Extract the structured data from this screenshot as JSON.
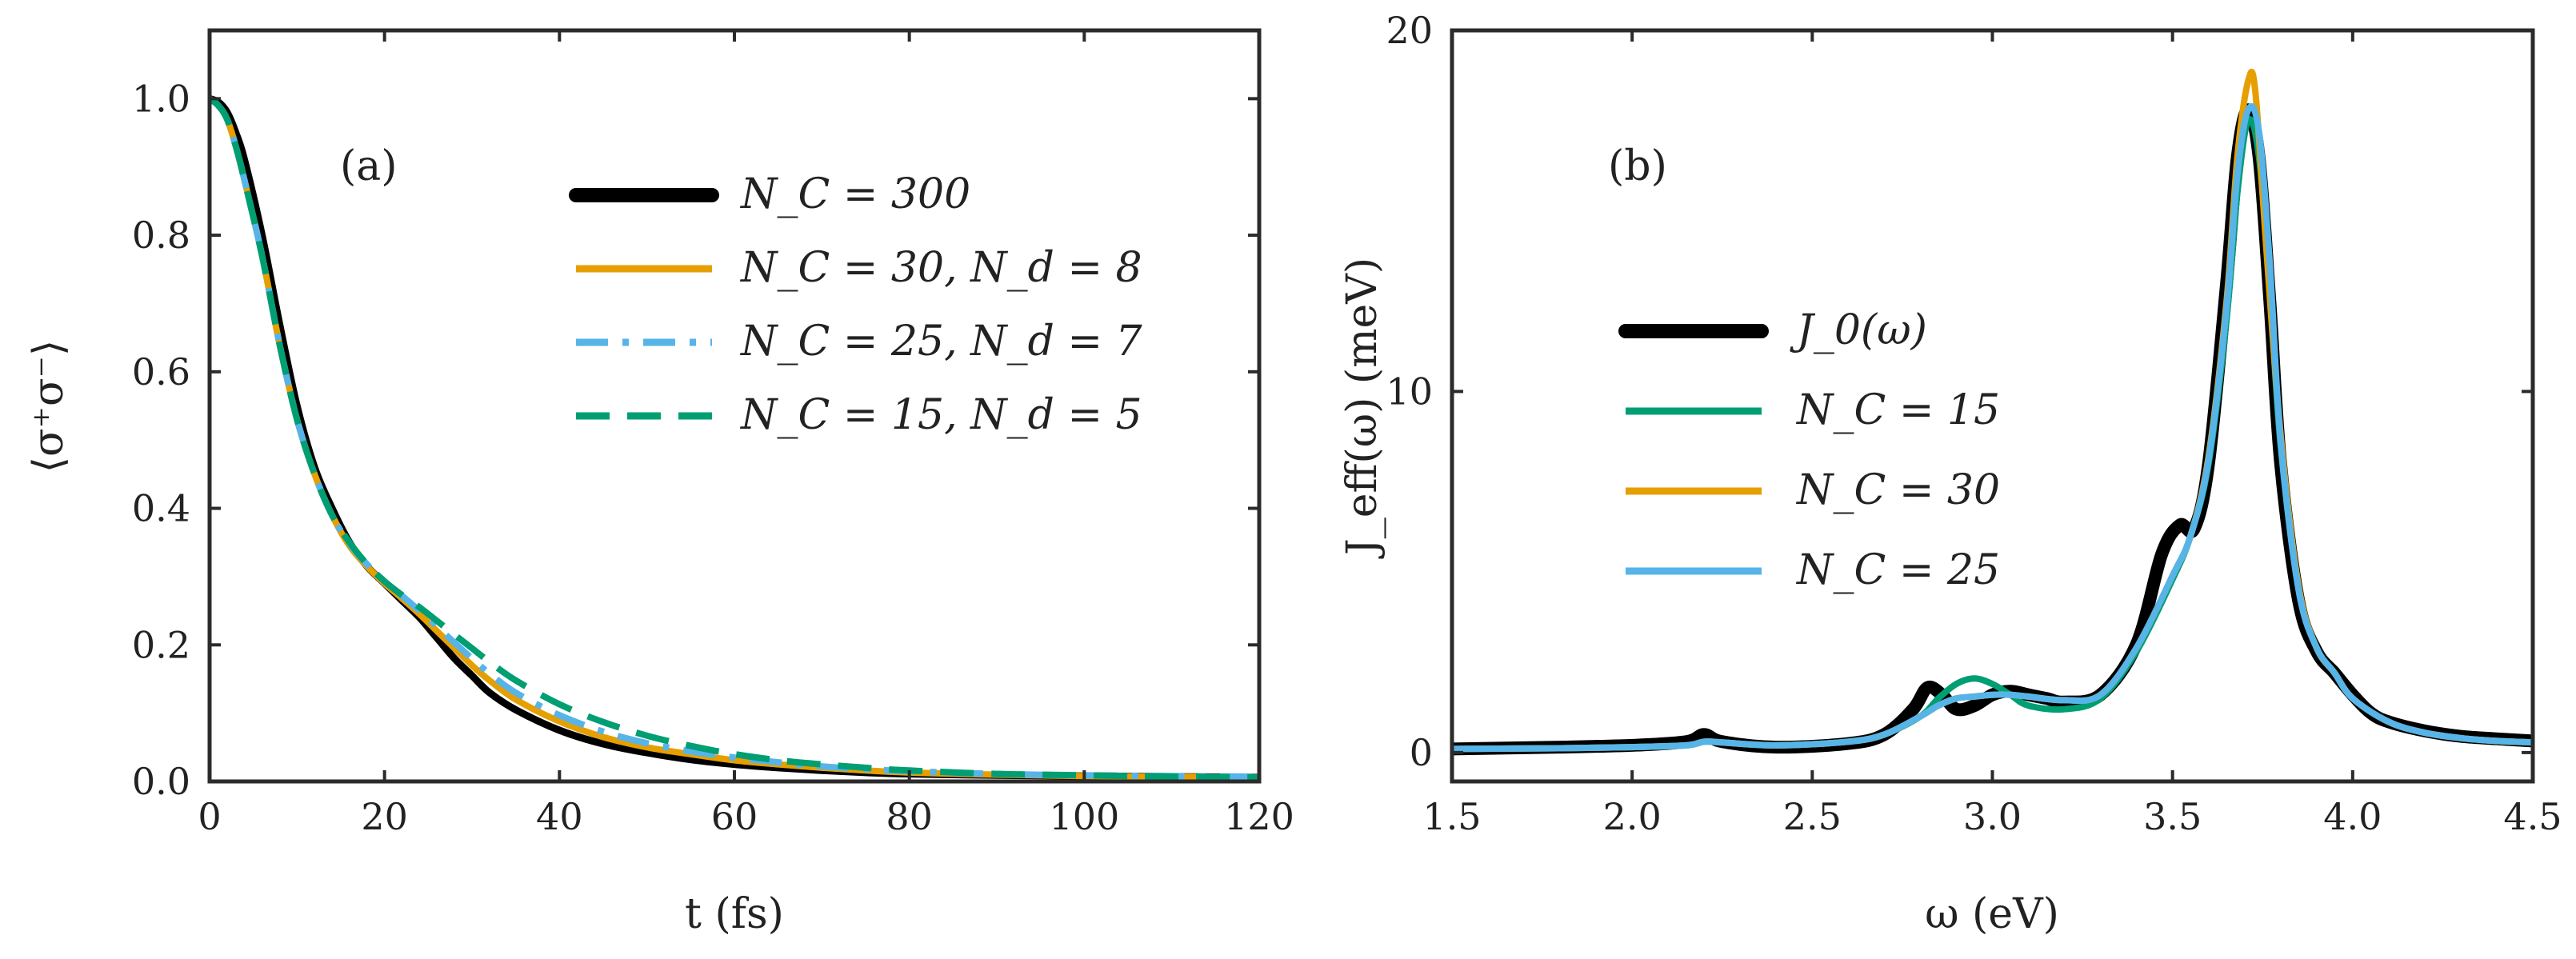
{
  "colors": {
    "black": "#000000",
    "orange": "#E69F00",
    "skyblue": "#56B4E9",
    "green": "#009E73",
    "frame": "#2b2b2b"
  },
  "chart_data": [
    {
      "id": "a",
      "type": "line",
      "panel_label": "(a)",
      "xlabel": "t (fs)",
      "ylabel": "⟨σ⁺σ⁻⟩",
      "xlim": [
        0,
        120
      ],
      "ylim": [
        0,
        1.1
      ],
      "xticks": [
        0,
        20,
        40,
        60,
        80,
        100,
        120
      ],
      "xtick_labels": [
        "0",
        "20",
        "40",
        "60",
        "80",
        "100",
        "120"
      ],
      "yticks": [
        0,
        0.2,
        0.4,
        0.6,
        0.8,
        1.0
      ],
      "ytick_labels": [
        "0.0",
        "0.2",
        "0.4",
        "0.6",
        "0.8",
        "1.0"
      ],
      "legend_position": "upper-right",
      "series": [
        {
          "name": "N_C = 300",
          "legend": "N_C = 300",
          "color": "#000000",
          "style": "solid",
          "x": [
            0,
            1,
            2,
            3,
            4,
            6,
            8,
            10,
            12,
            14,
            16,
            18,
            20,
            22,
            24,
            26,
            28,
            30,
            32,
            35,
            40,
            45,
            50,
            55,
            60,
            65,
            70,
            75,
            80,
            90,
            100,
            110,
            120
          ],
          "y": [
            1.0,
            0.995,
            0.98,
            0.95,
            0.91,
            0.8,
            0.67,
            0.55,
            0.46,
            0.4,
            0.35,
            0.315,
            0.29,
            0.265,
            0.24,
            0.21,
            0.18,
            0.155,
            0.13,
            0.105,
            0.075,
            0.055,
            0.042,
            0.032,
            0.025,
            0.02,
            0.016,
            0.013,
            0.011,
            0.009,
            0.008,
            0.007,
            0.006
          ]
        },
        {
          "name": "N_C = 30, N_d = 8",
          "legend": "N_C = 30, N_d = 8",
          "color": "#E69F00",
          "style": "solid",
          "x": [
            0,
            1,
            2,
            3,
            4,
            6,
            8,
            10,
            12,
            14,
            16,
            18,
            20,
            22,
            24,
            26,
            28,
            30,
            32,
            35,
            40,
            45,
            50,
            55,
            60,
            65,
            70,
            75,
            80,
            90,
            100,
            110,
            120
          ],
          "y": [
            1.0,
            0.99,
            0.97,
            0.93,
            0.88,
            0.77,
            0.64,
            0.53,
            0.45,
            0.39,
            0.345,
            0.315,
            0.29,
            0.268,
            0.245,
            0.22,
            0.195,
            0.17,
            0.148,
            0.12,
            0.088,
            0.065,
            0.05,
            0.04,
            0.031,
            0.025,
            0.02,
            0.016,
            0.013,
            0.01,
            0.008,
            0.007,
            0.006
          ]
        },
        {
          "name": "N_C = 25, N_d = 7",
          "legend": "N_C = 25, N_d = 7",
          "color": "#56B4E9",
          "style": "dashdot",
          "x": [
            0,
            1,
            2,
            3,
            4,
            6,
            8,
            10,
            12,
            14,
            16,
            18,
            20,
            22,
            24,
            26,
            28,
            30,
            32,
            35,
            40,
            45,
            50,
            55,
            60,
            65,
            70,
            75,
            80,
            90,
            100,
            110,
            120
          ],
          "y": [
            1.0,
            0.99,
            0.97,
            0.93,
            0.88,
            0.77,
            0.64,
            0.53,
            0.45,
            0.39,
            0.348,
            0.318,
            0.293,
            0.272,
            0.25,
            0.227,
            0.203,
            0.18,
            0.158,
            0.13,
            0.097,
            0.073,
            0.056,
            0.044,
            0.035,
            0.028,
            0.022,
            0.018,
            0.015,
            0.011,
            0.009,
            0.008,
            0.007
          ]
        },
        {
          "name": "N_C = 15, N_d = 5",
          "legend": "N_C = 15, N_d = 5",
          "color": "#009E73",
          "style": "dashed",
          "x": [
            0,
            1,
            2,
            3,
            4,
            6,
            8,
            10,
            12,
            14,
            16,
            18,
            20,
            22,
            24,
            26,
            28,
            30,
            32,
            35,
            40,
            45,
            50,
            55,
            60,
            65,
            70,
            75,
            80,
            90,
            100,
            110,
            120
          ],
          "y": [
            1.0,
            0.99,
            0.97,
            0.93,
            0.88,
            0.77,
            0.64,
            0.53,
            0.45,
            0.39,
            0.35,
            0.318,
            0.293,
            0.273,
            0.255,
            0.235,
            0.215,
            0.195,
            0.175,
            0.148,
            0.113,
            0.087,
            0.067,
            0.052,
            0.04,
            0.031,
            0.025,
            0.02,
            0.016,
            0.011,
            0.009,
            0.007,
            0.006
          ]
        }
      ]
    },
    {
      "id": "b",
      "type": "line",
      "panel_label": "(b)",
      "xlabel": "ω (eV)",
      "ylabel": "J_eff(ω) (meV)",
      "xlim": [
        1.5,
        4.5
      ],
      "ylim": [
        -0.8,
        20
      ],
      "xticks": [
        1.5,
        2.0,
        2.5,
        3.0,
        3.5,
        4.0,
        4.5
      ],
      "xtick_labels": [
        "1.5",
        "2.0",
        "2.5",
        "3.0",
        "3.5",
        "4.0",
        "4.5"
      ],
      "yticks": [
        0,
        10,
        20
      ],
      "ytick_labels": [
        "0",
        "10",
        "20"
      ],
      "legend_position": "center-left",
      "series": [
        {
          "name": "J_0(ω)",
          "legend": "J_0(ω)",
          "color": "#000000",
          "style": "solid",
          "x": [
            1.5,
            1.8,
            2.0,
            2.15,
            2.2,
            2.25,
            2.4,
            2.6,
            2.7,
            2.78,
            2.82,
            2.86,
            2.9,
            2.95,
            3.0,
            3.05,
            3.1,
            3.15,
            3.2,
            3.3,
            3.4,
            3.47,
            3.52,
            3.56,
            3.6,
            3.65,
            3.68,
            3.71,
            3.74,
            3.77,
            3.8,
            3.85,
            3.9,
            3.95,
            4.0,
            4.05,
            4.1,
            4.2,
            4.3,
            4.4,
            4.5
          ],
          "y": [
            0.1,
            0.15,
            0.2,
            0.3,
            0.5,
            0.3,
            0.15,
            0.25,
            0.5,
            1.2,
            1.8,
            1.6,
            1.2,
            1.3,
            1.6,
            1.7,
            1.6,
            1.5,
            1.4,
            1.6,
            3.0,
            5.5,
            6.3,
            6.2,
            8.0,
            13.0,
            16.5,
            17.8,
            16.5,
            12.5,
            8.0,
            4.2,
            2.8,
            2.2,
            1.6,
            1.1,
            0.85,
            0.6,
            0.45,
            0.38,
            0.32
          ]
        },
        {
          "name": "N_C = 15",
          "legend": "N_C = 15",
          "color": "#009E73",
          "style": "solid",
          "x": [
            1.5,
            1.8,
            2.0,
            2.15,
            2.2,
            2.25,
            2.4,
            2.6,
            2.7,
            2.8,
            2.85,
            2.9,
            2.95,
            3.0,
            3.05,
            3.1,
            3.2,
            3.3,
            3.4,
            3.5,
            3.55,
            3.6,
            3.65,
            3.68,
            3.71,
            3.74,
            3.77,
            3.8,
            3.85,
            3.9,
            3.95,
            4.0,
            4.1,
            4.2,
            4.3,
            4.4,
            4.5
          ],
          "y": [
            0.1,
            0.12,
            0.15,
            0.2,
            0.3,
            0.28,
            0.2,
            0.3,
            0.5,
            1.0,
            1.5,
            1.9,
            2.05,
            1.9,
            1.6,
            1.3,
            1.2,
            1.5,
            2.8,
            4.8,
            6.0,
            8.0,
            12.0,
            15.5,
            17.5,
            16.5,
            12.8,
            8.5,
            4.5,
            2.9,
            2.2,
            1.5,
            0.85,
            0.55,
            0.4,
            0.32,
            0.28
          ]
        },
        {
          "name": "N_C = 30",
          "legend": "N_C = 30",
          "color": "#E69F00",
          "style": "solid",
          "x": [
            1.5,
            1.8,
            2.0,
            2.15,
            2.2,
            2.25,
            2.4,
            2.6,
            2.7,
            2.8,
            2.85,
            2.9,
            2.95,
            3.0,
            3.05,
            3.1,
            3.2,
            3.3,
            3.4,
            3.5,
            3.55,
            3.6,
            3.65,
            3.68,
            3.71,
            3.73,
            3.76,
            3.8,
            3.85,
            3.9,
            3.95,
            4.0,
            4.1,
            4.2,
            4.3,
            4.4,
            4.5
          ],
          "y": [
            0.1,
            0.12,
            0.15,
            0.2,
            0.3,
            0.28,
            0.2,
            0.3,
            0.5,
            1.0,
            1.3,
            1.5,
            1.55,
            1.6,
            1.6,
            1.55,
            1.45,
            1.6,
            2.9,
            4.9,
            6.0,
            8.2,
            12.5,
            16.5,
            18.6,
            18.3,
            14.0,
            8.8,
            4.6,
            2.9,
            2.2,
            1.5,
            0.85,
            0.55,
            0.4,
            0.32,
            0.28
          ]
        },
        {
          "name": "N_C = 25",
          "legend": "N_C = 25",
          "color": "#56B4E9",
          "style": "solid",
          "x": [
            1.5,
            1.8,
            2.0,
            2.15,
            2.2,
            2.25,
            2.4,
            2.6,
            2.7,
            2.8,
            2.85,
            2.9,
            2.95,
            3.0,
            3.05,
            3.1,
            3.2,
            3.3,
            3.4,
            3.5,
            3.55,
            3.6,
            3.65,
            3.68,
            3.71,
            3.74,
            3.77,
            3.8,
            3.85,
            3.9,
            3.95,
            4.0,
            4.1,
            4.2,
            4.3,
            4.4,
            4.5
          ],
          "y": [
            0.1,
            0.12,
            0.15,
            0.2,
            0.3,
            0.28,
            0.2,
            0.3,
            0.5,
            1.0,
            1.3,
            1.5,
            1.55,
            1.6,
            1.6,
            1.55,
            1.45,
            1.6,
            2.9,
            4.9,
            6.0,
            8.1,
            12.3,
            16.0,
            17.8,
            17.2,
            13.5,
            8.6,
            4.5,
            2.9,
            2.2,
            1.5,
            0.85,
            0.55,
            0.4,
            0.32,
            0.28
          ]
        }
      ]
    }
  ]
}
